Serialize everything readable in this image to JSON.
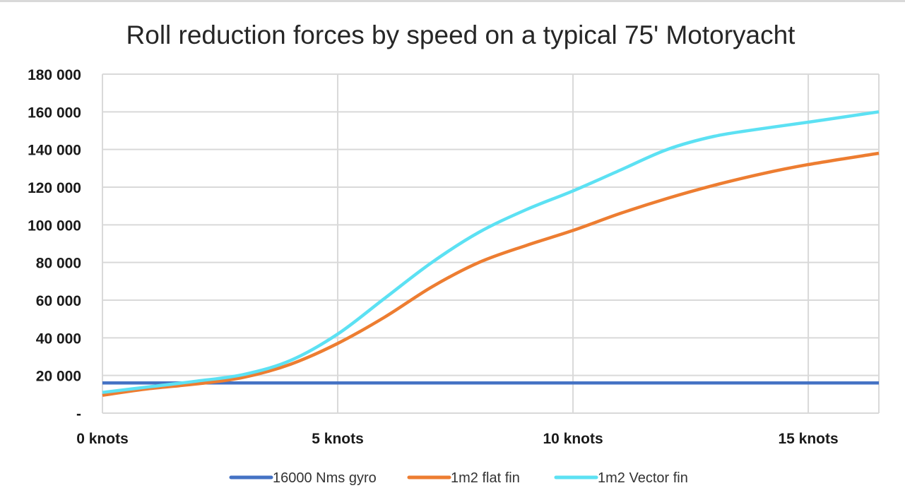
{
  "chart_data": {
    "type": "line",
    "title": "Roll reduction forces by speed on a typical 75' Motoryacht",
    "xlabel": "",
    "ylabel": "",
    "xlim": [
      0,
      16.5
    ],
    "ylim": [
      0,
      180000
    ],
    "x_ticks": [
      {
        "value": 0,
        "label": "0 knots"
      },
      {
        "value": 5,
        "label": "5 knots"
      },
      {
        "value": 10,
        "label": "10 knots"
      },
      {
        "value": 15,
        "label": "15 knots"
      }
    ],
    "y_ticks": [
      {
        "value": 0,
        "label": "-"
      },
      {
        "value": 20000,
        "label": "20 000"
      },
      {
        "value": 40000,
        "label": "40 000"
      },
      {
        "value": 60000,
        "label": "60 000"
      },
      {
        "value": 80000,
        "label": "80 000"
      },
      {
        "value": 100000,
        "label": "100 000"
      },
      {
        "value": 120000,
        "label": "120 000"
      },
      {
        "value": 140000,
        "label": "140 000"
      },
      {
        "value": 160000,
        "label": "160 000"
      },
      {
        "value": 180000,
        "label": "180 000"
      }
    ],
    "grid": true,
    "legend_position": "bottom",
    "series": [
      {
        "name": "16000 Nms gyro",
        "color": "#4472c4",
        "x": [
          0,
          16.5
        ],
        "values": [
          16000,
          16000
        ]
      },
      {
        "name": "1m2 flat fin",
        "color": "#ed7d31",
        "x": [
          0,
          1,
          2,
          3,
          4,
          5,
          6,
          7,
          8,
          9,
          10,
          11,
          12,
          13,
          14,
          15,
          16.5
        ],
        "values": [
          9500,
          13000,
          15500,
          19000,
          26000,
          37000,
          51000,
          67000,
          80000,
          89000,
          97000,
          106000,
          114000,
          121000,
          127000,
          132000,
          138000
        ]
      },
      {
        "name": "1m2 Vector fin",
        "color": "#5ce1f3",
        "x": [
          0,
          1,
          2,
          3,
          4,
          5,
          6,
          7,
          8,
          9,
          10,
          11,
          12,
          13,
          14,
          15,
          16.5
        ],
        "values": [
          11000,
          14000,
          17000,
          20500,
          28000,
          42000,
          61000,
          80000,
          96000,
          108000,
          118000,
          129000,
          140000,
          147000,
          151000,
          154500,
          160000
        ]
      }
    ]
  }
}
